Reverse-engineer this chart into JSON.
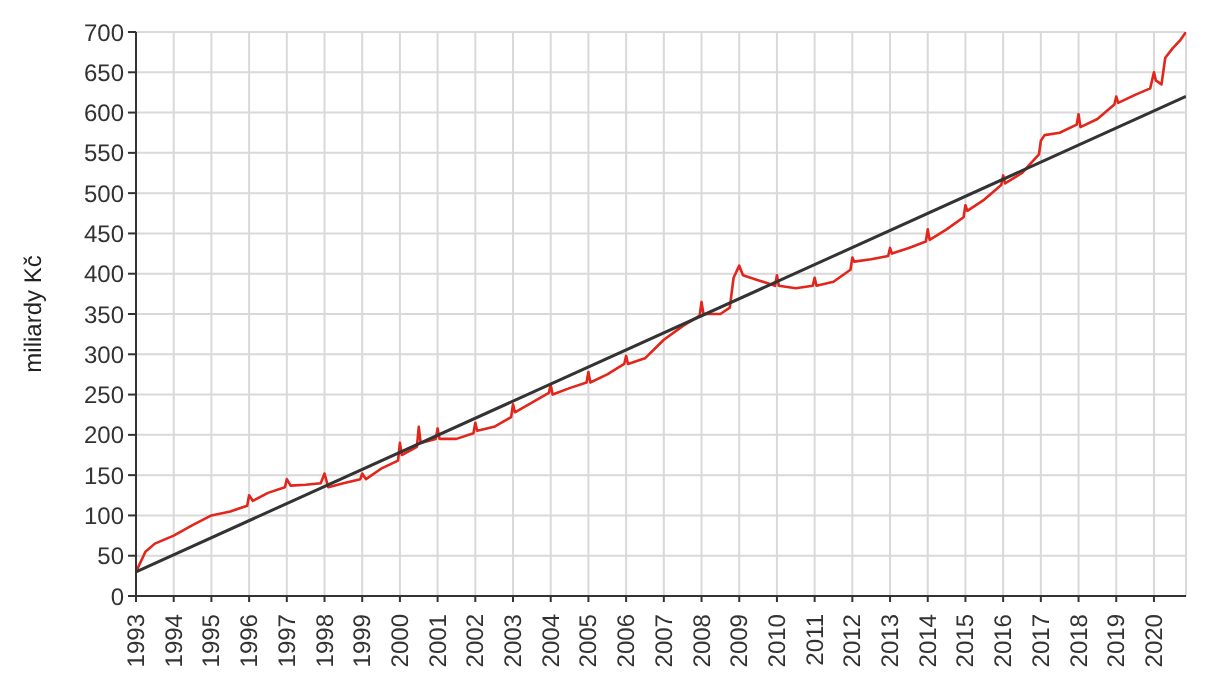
{
  "chart_data": {
    "type": "line",
    "ylabel": "miliardy Kč",
    "xlim": [
      1993,
      2020.85
    ],
    "xticks": [
      1993,
      1994,
      1995,
      1996,
      1997,
      1998,
      1999,
      2000,
      2001,
      2002,
      2003,
      2004,
      2005,
      2006,
      2007,
      2008,
      2009,
      2010,
      2011,
      2012,
      2013,
      2014,
      2015,
      2016,
      2017,
      2018,
      2019,
      2020
    ],
    "ylim": [
      0,
      700
    ],
    "yticks": [
      0,
      50,
      100,
      150,
      200,
      250,
      300,
      350,
      400,
      450,
      500,
      550,
      600,
      650,
      700
    ],
    "grid": true,
    "legend": false,
    "marker": "none",
    "line_style": "solid",
    "series": [
      {
        "color": "#e3261c",
        "x": [
          1993,
          1993.25,
          1993.5,
          1994,
          1994.5,
          1995,
          1995.5,
          1995.95,
          1996,
          1996.1,
          1996.5,
          1996.95,
          1997,
          1997.1,
          1997.5,
          1997.9,
          1998,
          1998.1,
          1998.5,
          1998.95,
          1999,
          1999.1,
          1999.5,
          1999.95,
          2000,
          2000.05,
          2000.45,
          2000.5,
          2000.55,
          2000.95,
          2001,
          2001.05,
          2001.5,
          2001.95,
          2002,
          2002.05,
          2002.5,
          2002.95,
          2003,
          2003.05,
          2003.5,
          2003.95,
          2004,
          2004.05,
          2004.5,
          2004.95,
          2005,
          2005.05,
          2005.5,
          2005.95,
          2006,
          2006.05,
          2006.5,
          2007,
          2007.5,
          2007.95,
          2008,
          2008.05,
          2008.5,
          2008.75,
          2008.85,
          2009,
          2009.1,
          2009.5,
          2009.95,
          2010,
          2010.05,
          2010.5,
          2010.95,
          2011,
          2011.05,
          2011.5,
          2011.95,
          2012,
          2012.05,
          2012.5,
          2012.95,
          2013,
          2013.05,
          2013.5,
          2013.95,
          2014,
          2014.05,
          2014.5,
          2014.95,
          2015,
          2015.05,
          2015.5,
          2015.95,
          2016,
          2016.05,
          2016.5,
          2016.95,
          2017,
          2017.1,
          2017.5,
          2017.95,
          2018,
          2018.05,
          2018.5,
          2018.95,
          2019,
          2019.05,
          2019.5,
          2019.9,
          2020,
          2020.05,
          2020.2,
          2020.3,
          2020.5,
          2020.7,
          2020.85
        ],
        "values": [
          30,
          55,
          65,
          75,
          88,
          100,
          105,
          112,
          125,
          118,
          128,
          135,
          145,
          137,
          138,
          140,
          152,
          135,
          140,
          145,
          152,
          145,
          158,
          168,
          190,
          175,
          185,
          210,
          190,
          195,
          208,
          195,
          195,
          202,
          215,
          205,
          210,
          222,
          238,
          228,
          240,
          252,
          262,
          250,
          258,
          265,
          278,
          265,
          275,
          288,
          298,
          288,
          295,
          318,
          335,
          348,
          365,
          350,
          350,
          358,
          395,
          410,
          398,
          392,
          385,
          398,
          385,
          382,
          385,
          395,
          385,
          390,
          405,
          420,
          415,
          418,
          422,
          432,
          425,
          432,
          440,
          455,
          442,
          455,
          470,
          485,
          478,
          492,
          510,
          522,
          512,
          525,
          548,
          565,
          572,
          575,
          585,
          598,
          582,
          592,
          610,
          620,
          612,
          622,
          630,
          650,
          640,
          635,
          668,
          680,
          690,
          700
        ]
      },
      {
        "color": "#333333",
        "x": [
          1993,
          2020.85
        ],
        "values": [
          30,
          620
        ]
      }
    ]
  }
}
